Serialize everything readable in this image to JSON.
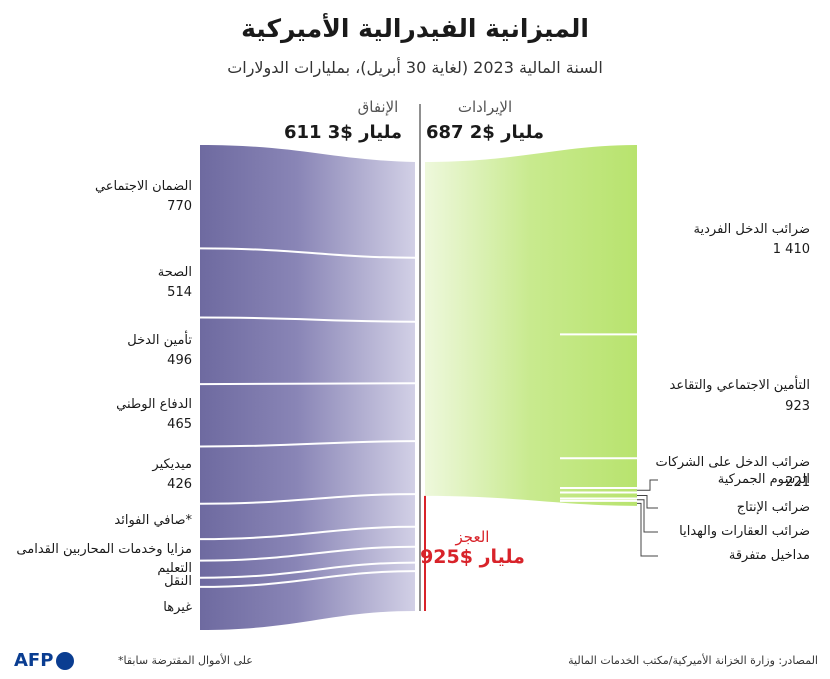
{
  "title": "الميزانية الفيدرالية الأميركية",
  "subtitle": "السنة المالية 2023 (لغاية 30 أبريل)، بمليارات الدولارات",
  "spending_label": "الإنفاق",
  "spending_total": "611 3$ مليار",
  "revenue_label": "الإيرادات",
  "revenue_total": "687 2$ مليار",
  "deficit_label": "العجز",
  "deficit_value": "925$ مليار",
  "footnote": "*على الأموال المقترضة سابقا",
  "source": "المصادر: وزارة الخزانة الأميركية/مكتب الخدمات المالية",
  "logo_text": "AFP",
  "colors": {
    "spending": "#6e6aa0",
    "revenue": "#b8e36e",
    "deficit": "#d8232a"
  },
  "chart_data": {
    "type": "sankey",
    "title": "الميزانية الفيدرالية الأميركية",
    "unit": "مليار دولار",
    "spending": [
      {
        "name": "الضمان الاجتماعي",
        "value": 770,
        "value_label": "770"
      },
      {
        "name": "الصحة",
        "value": 514,
        "value_label": "514"
      },
      {
        "name": "تأمين الدخل",
        "value": 496,
        "value_label": "496"
      },
      {
        "name": "الدفاع الوطني",
        "value": 465,
        "value_label": "465"
      },
      {
        "name": "ميديكير",
        "value": 426,
        "value_label": "426"
      },
      {
        "name": "صافي الفوائد*",
        "value": 263,
        "value_label": ""
      },
      {
        "name": "مزايا وخدمات المحاربين القدامى",
        "value": 160,
        "value_label": ""
      },
      {
        "name": "التعليم",
        "value": 128,
        "value_label": ""
      },
      {
        "name": "النقل",
        "value": 68,
        "value_label": ""
      },
      {
        "name": "غيرها",
        "value": 321,
        "value_label": ""
      }
    ],
    "revenue": [
      {
        "name": "ضرائب الدخل الفردية",
        "value": 1410,
        "value_label": "1 410"
      },
      {
        "name": "التأمين الاجتماعي والتقاعد",
        "value": 923,
        "value_label": "923"
      },
      {
        "name": "ضرائب الدخل على الشركات",
        "value": 221,
        "value_label": "221"
      },
      {
        "name": "الرسوم الجمركية",
        "value": 33,
        "value_label": ""
      },
      {
        "name": "ضرائب الإنتاج",
        "value": 45,
        "value_label": ""
      },
      {
        "name": "ضرائب العقارات والهدايا",
        "value": 18,
        "value_label": ""
      },
      {
        "name": "مداخيل متفرقة",
        "value": 37,
        "value_label": ""
      }
    ],
    "deficit": {
      "name": "العجز",
      "value": 925
    },
    "spending_total": 3611,
    "revenue_total": 2687
  }
}
